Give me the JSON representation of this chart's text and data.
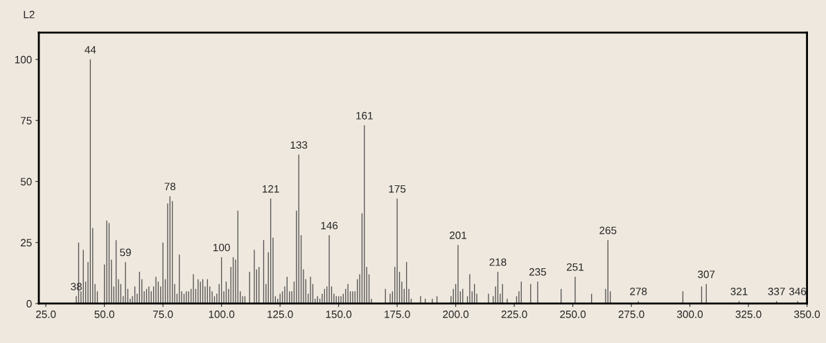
{
  "chart_data": {
    "type": "bar",
    "color": "#555555",
    "x": [
      38,
      39,
      40,
      41,
      42,
      43,
      44,
      45,
      46,
      47,
      50,
      51,
      52,
      53,
      54,
      55,
      56,
      57,
      58,
      59,
      60,
      61,
      62,
      63,
      64,
      65,
      66,
      67,
      68,
      69,
      70,
      71,
      72,
      73,
      74,
      75,
      76,
      77,
      78,
      79,
      80,
      81,
      82,
      83,
      84,
      85,
      86,
      87,
      88,
      89,
      90,
      91,
      92,
      93,
      94,
      95,
      96,
      97,
      98,
      99,
      100,
      101,
      102,
      103,
      104,
      105,
      106,
      107,
      108,
      109,
      110,
      112,
      114,
      115,
      116,
      118,
      119,
      120,
      121,
      122,
      123,
      124,
      125,
      126,
      127,
      128,
      129,
      130,
      131,
      132,
      133,
      134,
      135,
      136,
      137,
      138,
      139,
      140,
      141,
      142,
      143,
      144,
      145,
      146,
      147,
      148,
      149,
      150,
      151,
      152,
      153,
      154,
      155,
      156,
      157,
      158,
      159,
      160,
      161,
      162,
      163,
      164,
      170,
      172,
      173,
      174,
      175,
      176,
      177,
      178,
      179,
      180,
      181,
      185,
      187,
      190,
      192,
      198,
      199,
      200,
      201,
      202,
      203,
      205,
      206,
      207,
      208,
      209,
      214,
      216,
      217,
      218,
      219,
      220,
      222,
      226,
      227,
      228,
      232,
      235,
      245,
      251,
      258,
      264,
      265,
      266,
      278,
      297,
      305,
      307,
      321,
      337,
      346
    ],
    "values": [
      3,
      25,
      5,
      22,
      9,
      17,
      100,
      31,
      8,
      5,
      16,
      34,
      33,
      18,
      7,
      26,
      10,
      8,
      3,
      17,
      6,
      2,
      3,
      7,
      4,
      13,
      10,
      5,
      6,
      7,
      5,
      7,
      11,
      9,
      7,
      25,
      10,
      41,
      44,
      42,
      8,
      4,
      20,
      5,
      4,
      5,
      5,
      6,
      12,
      6,
      10,
      9,
      10,
      7,
      10,
      7,
      5,
      3,
      4,
      8,
      19,
      5,
      9,
      6,
      15,
      19,
      18,
      38,
      5,
      3,
      3,
      13,
      22,
      14,
      15,
      26,
      8,
      21,
      43,
      27,
      3,
      2,
      4,
      5,
      7,
      11,
      5,
      5,
      9,
      38,
      61,
      28,
      14,
      10,
      4,
      11,
      8,
      2,
      3,
      2,
      4,
      6,
      7,
      28,
      7,
      4,
      3,
      3,
      3,
      4,
      6,
      8,
      5,
      5,
      5,
      10,
      12,
      37,
      73,
      15,
      12,
      2,
      6,
      4,
      5,
      15,
      43,
      13,
      9,
      6,
      17,
      6,
      2,
      3,
      2,
      2,
      3,
      3,
      6,
      8,
      24,
      5,
      6,
      3,
      12,
      5,
      8,
      4,
      4,
      3,
      7,
      13,
      4,
      8,
      2,
      3,
      5,
      9,
      8,
      9,
      6,
      11,
      4,
      6,
      26,
      5,
      1,
      5,
      7,
      8,
      1,
      1,
      1
    ],
    "xlim": [
      22,
      350
    ],
    "ylim": [
      0,
      111
    ],
    "xticks": [
      {
        "value": 25,
        "label": "25.0"
      },
      {
        "value": 50,
        "label": "50.0"
      },
      {
        "value": 75,
        "label": "75.0"
      },
      {
        "value": 100,
        "label": "100.0"
      },
      {
        "value": 125,
        "label": "125.0"
      },
      {
        "value": 150,
        "label": "150.0"
      },
      {
        "value": 175,
        "label": "175.0"
      },
      {
        "value": 200,
        "label": "200.0"
      },
      {
        "value": 225,
        "label": "225.0"
      },
      {
        "value": 250,
        "label": "250.0"
      },
      {
        "value": 275,
        "label": "275.0"
      },
      {
        "value": 300,
        "label": "300.0"
      },
      {
        "value": 325,
        "label": "325.0"
      },
      {
        "value": 350,
        "label": "350.0"
      }
    ],
    "yticks": [
      0,
      25,
      50,
      75,
      100
    ],
    "grid": false,
    "annotations": [
      "L2",
      {
        "text": "38",
        "x": 38,
        "y": 3
      },
      {
        "text": "44",
        "x": 44,
        "y": 100
      },
      {
        "text": "59",
        "x": 59,
        "y": 17
      },
      {
        "text": "78",
        "x": 78,
        "y": 44
      },
      {
        "text": "100",
        "x": 100,
        "y": 19
      },
      {
        "text": "121",
        "x": 121,
        "y": 43
      },
      {
        "text": "133",
        "x": 133,
        "y": 61
      },
      {
        "text": "146",
        "x": 146,
        "y": 28
      },
      {
        "text": "161",
        "x": 161,
        "y": 73
      },
      {
        "text": "175",
        "x": 175,
        "y": 43
      },
      {
        "text": "201",
        "x": 201,
        "y": 24
      },
      {
        "text": "218",
        "x": 218,
        "y": 13
      },
      {
        "text": "235",
        "x": 235,
        "y": 9
      },
      {
        "text": "251",
        "x": 251,
        "y": 11
      },
      {
        "text": "265",
        "x": 265,
        "y": 26
      },
      {
        "text": "278",
        "x": 278,
        "y": 1
      },
      {
        "text": "307",
        "x": 307,
        "y": 8
      },
      {
        "text": "321",
        "x": 321,
        "y": 1
      },
      {
        "text": "337",
        "x": 337,
        "y": 1
      },
      {
        "text": "346",
        "x": 346,
        "y": 1
      }
    ]
  }
}
